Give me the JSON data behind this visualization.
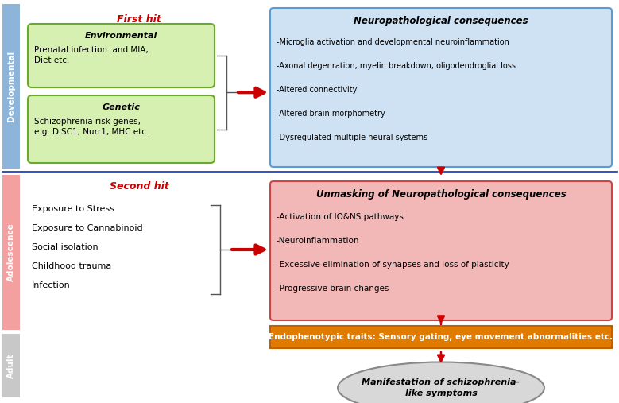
{
  "fig_width": 7.79,
  "fig_height": 5.07,
  "dpi": 100,
  "bg_color": "#ffffff",
  "colors": {
    "light_green": "#d6f0b2",
    "green_border": "#6aaa2a",
    "light_blue": "#cfe2f3",
    "blue_border": "#5b9bd5",
    "light_red": "#f2b8b8",
    "red_border": "#cc4444",
    "orange_bg": "#e07b00",
    "orange_border": "#c06000",
    "gray_ellipse": "#d8d8d8",
    "gray_border": "#888888",
    "left_blue_bar": "#8db4d9",
    "left_pink_bar": "#f4a0a0",
    "left_gray_bar": "#c8c8c8",
    "arrow_red": "#cc0000",
    "sep_line": "#2244aa",
    "bracket_color": "#555555"
  },
  "first_hit_label": "First hit",
  "second_hit_label": "Second hit",
  "env_title": "Environmental",
  "env_text": "Prenatal infection  and MIA,\nDiet etc.",
  "genetic_title": "Genetic",
  "genetic_text": "Schizophrenia risk genes,\ne.g. DISC1, Nurr1, MHC etc.",
  "neuro_title": "Neuropathological consequences",
  "neuro_lines": [
    "-Microglia activation and developmental neuroinflammation",
    "-Axonal degenration, myelin breakdown, oligodendroglial loss",
    "-Altered connectivity",
    "-Altered brain morphometry",
    "-Dysregulated multiple neural systems"
  ],
  "second_hit_items": [
    "Exposure to Stress",
    "Exposure to Cannabinoid",
    "Social isolation",
    "Childhood trauma",
    "Infection"
  ],
  "unmasking_title": "Unmasking of Neuropathological consequences",
  "unmasking_lines": [
    "-Activation of IO&NS pathways",
    "-Neuroinflammation",
    "-Excessive elimination of synapses and loss of plasticity",
    "-Progressive brain changes"
  ],
  "endophenotypic_text": "Endophenotypic traits: Sensory gating, eye movement abnormalities etc.",
  "manifestation_text": "Manifestation of schizophrenia-\nlike symptoms"
}
